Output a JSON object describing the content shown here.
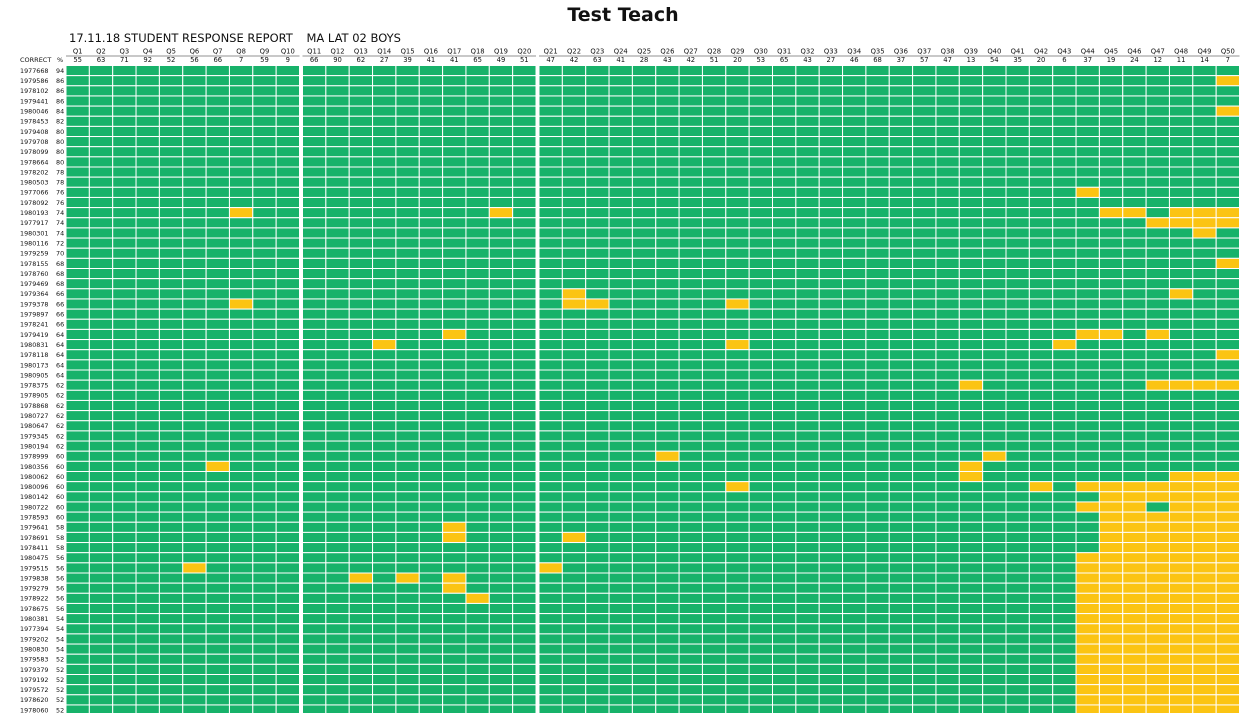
{
  "title": "Test Teach",
  "report": {
    "date": "17.11.18",
    "heading": "STUDENT RESPONSE REPORT",
    "group": "MA LAT 02 BOYS"
  },
  "labels": {
    "correct": "CORRECT",
    "percent": "%"
  },
  "colors": {
    "correct": "#17b26a",
    "incorrect": "#f55b32",
    "partial": "#fbc413",
    "grid": "#ffffff",
    "text": "#111111"
  },
  "chart_data": {
    "type": "heatmap",
    "title": "Test Teach",
    "legend_codes": {
      "0": "correct (green)",
      "1": "incorrect (red)",
      "2": "partial (yellow)"
    },
    "questions": [
      "Q1",
      "Q2",
      "Q3",
      "Q4",
      "Q5",
      "Q6",
      "Q7",
      "Q8",
      "Q9",
      "Q10",
      "Q11",
      "Q12",
      "Q13",
      "Q14",
      "Q15",
      "Q16",
      "Q17",
      "Q18",
      "Q19",
      "Q20",
      "Q21",
      "Q22",
      "Q23",
      "Q24",
      "Q25",
      "Q26",
      "Q27",
      "Q28",
      "Q29",
      "Q30",
      "Q31",
      "Q32",
      "Q33",
      "Q34",
      "Q35",
      "Q36",
      "Q37",
      "Q38",
      "Q39",
      "Q40",
      "Q41",
      "Q42",
      "Q43",
      "Q44",
      "Q45",
      "Q46",
      "Q47",
      "Q48",
      "Q49",
      "Q50"
    ],
    "question_percent_correct": [
      55,
      63,
      71,
      92,
      52,
      56,
      66,
      7,
      59,
      9,
      66,
      90,
      62,
      27,
      39,
      41,
      41,
      65,
      49,
      51,
      47,
      42,
      63,
      41,
      28,
      43,
      42,
      51,
      20,
      53,
      65,
      43,
      27,
      46,
      68,
      37,
      57,
      47,
      13,
      54,
      35,
      20,
      6,
      37,
      19,
      24,
      12,
      11,
      14,
      7
    ],
    "students": [
      "1977668",
      "1979586",
      "1978102",
      "1979441",
      "1980046",
      "1978453",
      "1979408",
      "1979708",
      "1978099",
      "1978664",
      "1978202",
      "1980503",
      "1977066",
      "1978092",
      "1980193",
      "1977917",
      "1980301",
      "1980116",
      "1979259",
      "1978155",
      "1978760",
      "1979469",
      "1979364",
      "1979378",
      "1979897",
      "1978241",
      "1979419",
      "1980831",
      "1978118",
      "1980173",
      "1980905",
      "1978375",
      "1978905",
      "1978868",
      "1980727",
      "1980647",
      "1979345",
      "1980194",
      "1978999",
      "1980356",
      "1980062",
      "1980096",
      "1980142",
      "1980722",
      "1978593",
      "1979641",
      "1978691",
      "1978411",
      "1980475",
      "1979515",
      "1979838",
      "1979279",
      "1978922",
      "1978675",
      "1980381",
      "1977394",
      "1979202",
      "1980830",
      "1979583",
      "1979379",
      "1979192",
      "1979572",
      "1978620",
      "1978060"
    ],
    "student_percent_correct": [
      94,
      86,
      86,
      86,
      84,
      82,
      80,
      80,
      80,
      80,
      78,
      78,
      76,
      76,
      74,
      74,
      74,
      72,
      70,
      68,
      68,
      68,
      66,
      66,
      66,
      66,
      64,
      64,
      64,
      64,
      64,
      62,
      62,
      62,
      62,
      62,
      62,
      62,
      60,
      60,
      60,
      60,
      60,
      60,
      60,
      58,
      58,
      58,
      56,
      56,
      56,
      56,
      56,
      56,
      54,
      54,
      54,
      54,
      52,
      52,
      52,
      52,
      52,
      52
    ],
    "responses": [
      "00000000000000000000000000000000000000000000000000",
      "00000000000000000000000000000000000000000000000002",
      "00000000000000000000000000000000000000000000000000",
      "00000000000000000000000000000000000000000000000000",
      "00000000000000000000000000000000000000000000000002",
      "00000000000000000000000000000000000000000000000000",
      "00000000000000000000000000000000000000000000000000",
      "00000000000000000000000000000000000000000000000000",
      "00000000000000000000000000000000000000000000000000",
      "00000000000000000000000000000000000000000000000000",
      "00000000000000000000000000000000000000000000000000",
      "00000000000000000000000000000000000000000000000000",
      "00000000000000000000000000000000000000000002000000",
      "00000000000000000000000000000000000000000000000000",
      "00000002000000000020000000000000000000000000220222",
      "00000000000000000000000000000000000000000000002222",
      "00000000000000000000000000000000000000000000000020",
      "00000000000000000000000000000000000000000000000000",
      "00000000000000000000000000000000000000000000000000",
      "00000000000000000000000000000000000000000000000002",
      "00000000000000000000000000000000000000000000000000",
      "00000000000000000000000000000000000000000000000000",
      "00000000000000000000020000000000000000000000000200",
      "00000002000000000000022000002000000000000000000000",
      "00000000000000000000000000000000000000000000000000",
      "00000000000000000000000000000000000000000000000000",
      "00000000000000002000000000000000000000000002202000",
      "00000000000002000000000000002000000000000020000000",
      "00000000000000000000000000000000000000000000000002",
      "00000000000000000000000000000000000000000000000000",
      "00000000000000000000000000000000000000000000000000",
      "00000000000000000000000000000000000000200000002222",
      "00000000000000000000000000000000000000000000000000",
      "00000000000000000000000000000000000000000000000000",
      "00000000000000000000000000000000000000000000000000",
      "00000000000000000000000000000000000000000000000000",
      "00000000000000000000000000000000000000000000000000",
      "00000000000000000000000000000000000000000000000000",
      "00000000000000000000000002000000000000020000000000",
      "00000020000000000000000000000000000000200000000000",
      "00000000000000000000000000000000000000200000000222",
      "00000000000000000000000000002000000000000202222222",
      "00000000000000000000000000000000000000000000222222",
      "00000000000000000000000000000000000000000002220222",
      "00000000000000000000000000000000000000000000222222",
      "00000000000000002000000000000000000000000000222222",
      "00000000000000002000020000000000000000000000222222",
      "00000000000000000000000000000000000000000000222222",
      "00000000000000000000000000000000000000000002222222",
      "00000200000000000000200000000000000000000002222222",
      "00000000000020202000000000000000000000000002222222",
      "00000000000000002000000000000000000000000002222222",
      "00000000000000000200000000000000000000000002222222",
      "00000000000000000000000000000000000000000002222222",
      "00000000000000000000000000000000000000000002222222",
      "00000000000000000000000000000000000000000002222222",
      "00000000000000000000000000000000000000000002222222",
      "00000000000000000000000000000000000000000002222222",
      "00000000000000000000000000000000000000000002222222",
      "00000000000000000000000000000000000000000002222222",
      "00000000000000000000000000000000000000000002222222",
      "00000000000000000000000000000000000000000002222222",
      "00000000000000000000000000000000000000000002222222",
      "00000000000000000000000000000000000000000002222222"
    ]
  }
}
